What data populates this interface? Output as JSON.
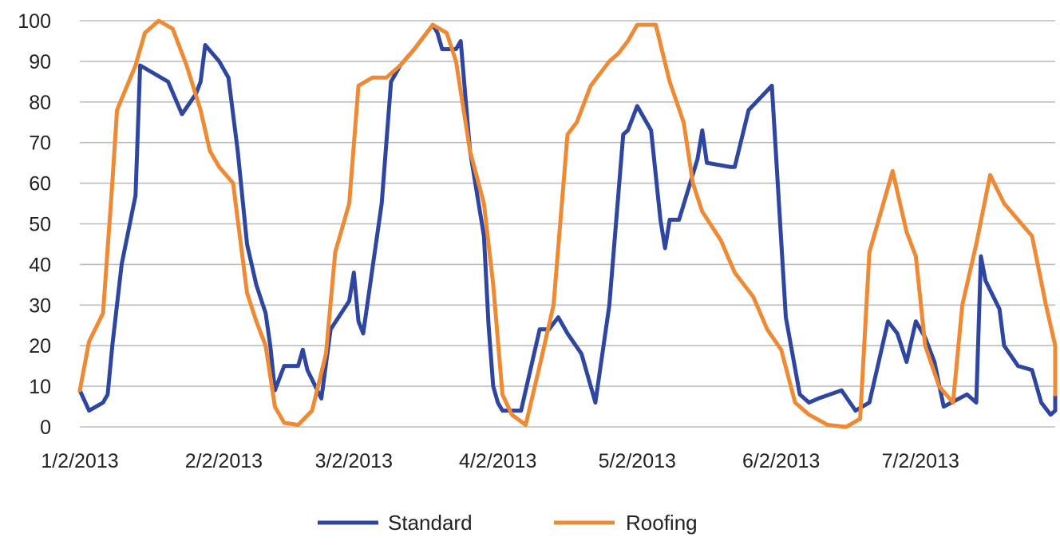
{
  "chart_data": {
    "type": "line",
    "title": "",
    "xlabel": "",
    "ylabel": "",
    "ylim": [
      0,
      100
    ],
    "yticks": [
      0,
      10,
      20,
      30,
      40,
      50,
      60,
      70,
      80,
      90,
      100
    ],
    "xlim": [
      "2013-01-02",
      "2013-07-31"
    ],
    "xticks": [
      {
        "date": "2013-01-02",
        "label": "1/2/2013"
      },
      {
        "date": "2013-02-02",
        "label": "2/2/2013"
      },
      {
        "date": "2013-03-02",
        "label": "3/2/2013"
      },
      {
        "date": "2013-04-02",
        "label": "4/2/2013"
      },
      {
        "date": "2013-05-02",
        "label": "5/2/2013"
      },
      {
        "date": "2013-06-02",
        "label": "6/2/2013"
      },
      {
        "date": "2013-07-02",
        "label": "7/2/2013"
      }
    ],
    "grid": true,
    "legend": "bottom",
    "series": [
      {
        "name": "Standard",
        "color": "#2e46a0",
        "points": [
          [
            "2013-01-02",
            9
          ],
          [
            "2013-01-04",
            4
          ],
          [
            "2013-01-07",
            6
          ],
          [
            "2013-01-08",
            8
          ],
          [
            "2013-01-09",
            20
          ],
          [
            "2013-01-11",
            40
          ],
          [
            "2013-01-14",
            57
          ],
          [
            "2013-01-15",
            89
          ],
          [
            "2013-01-21",
            85
          ],
          [
            "2013-01-24",
            77
          ],
          [
            "2013-01-27",
            82
          ],
          [
            "2013-01-28",
            85
          ],
          [
            "2013-01-29",
            94
          ],
          [
            "2013-02-01",
            90
          ],
          [
            "2013-02-03",
            86
          ],
          [
            "2013-02-05",
            68
          ],
          [
            "2013-02-07",
            45
          ],
          [
            "2013-02-09",
            35
          ],
          [
            "2013-02-11",
            28
          ],
          [
            "2013-02-12",
            20
          ],
          [
            "2013-02-13",
            9
          ],
          [
            "2013-02-15",
            15
          ],
          [
            "2013-02-18",
            15
          ],
          [
            "2013-02-19",
            19
          ],
          [
            "2013-02-20",
            14
          ],
          [
            "2013-02-23",
            7
          ],
          [
            "2013-02-25",
            24
          ],
          [
            "2013-03-01",
            31
          ],
          [
            "2013-03-02",
            38
          ],
          [
            "2013-03-03",
            26
          ],
          [
            "2013-03-04",
            23
          ],
          [
            "2013-03-08",
            55
          ],
          [
            "2013-03-10",
            85
          ],
          [
            "2013-03-12",
            89
          ],
          [
            "2013-03-15",
            93
          ],
          [
            "2013-03-19",
            99
          ],
          [
            "2013-03-20",
            97
          ],
          [
            "2013-03-21",
            93
          ],
          [
            "2013-03-24",
            93
          ],
          [
            "2013-03-25",
            95
          ],
          [
            "2013-03-27",
            68
          ],
          [
            "2013-03-30",
            47
          ],
          [
            "2013-03-31",
            25
          ],
          [
            "2013-04-01",
            10
          ],
          [
            "2013-04-02",
            6
          ],
          [
            "2013-04-03",
            4
          ],
          [
            "2013-04-07",
            4
          ],
          [
            "2013-04-11",
            24
          ],
          [
            "2013-04-13",
            24
          ],
          [
            "2013-04-15",
            27
          ],
          [
            "2013-04-17",
            23
          ],
          [
            "2013-04-20",
            18
          ],
          [
            "2013-04-22",
            10
          ],
          [
            "2013-04-23",
            6
          ],
          [
            "2013-04-26",
            30
          ],
          [
            "2013-04-29",
            72
          ],
          [
            "2013-04-30",
            73
          ],
          [
            "2013-05-02",
            79
          ],
          [
            "2013-05-05",
            73
          ],
          [
            "2013-05-07",
            51
          ],
          [
            "2013-05-08",
            44
          ],
          [
            "2013-05-09",
            51
          ],
          [
            "2013-05-11",
            51
          ],
          [
            "2013-05-15",
            66
          ],
          [
            "2013-05-16",
            73
          ],
          [
            "2013-05-17",
            65
          ],
          [
            "2013-05-22",
            64
          ],
          [
            "2013-05-23",
            64
          ],
          [
            "2013-05-26",
            78
          ],
          [
            "2013-05-31",
            84
          ],
          [
            "2013-06-03",
            27
          ],
          [
            "2013-06-06",
            8
          ],
          [
            "2013-06-08",
            6
          ],
          [
            "2013-06-10",
            7
          ],
          [
            "2013-06-15",
            9
          ],
          [
            "2013-06-18",
            4
          ],
          [
            "2013-06-21",
            6
          ],
          [
            "2013-06-25",
            26
          ],
          [
            "2013-06-27",
            23
          ],
          [
            "2013-06-29",
            16
          ],
          [
            "2013-07-01",
            26
          ],
          [
            "2013-07-03",
            22
          ],
          [
            "2013-07-05",
            16
          ],
          [
            "2013-07-07",
            5
          ],
          [
            "2013-07-12",
            8
          ],
          [
            "2013-07-14",
            6
          ],
          [
            "2013-07-15",
            42
          ],
          [
            "2013-07-16",
            36
          ],
          [
            "2013-07-19",
            29
          ],
          [
            "2013-07-20",
            20
          ],
          [
            "2013-07-23",
            15
          ],
          [
            "2013-07-26",
            14
          ],
          [
            "2013-07-28",
            6
          ],
          [
            "2013-07-30",
            3
          ],
          [
            "2013-08-01",
            4
          ],
          [
            "2013-08-03",
            7
          ],
          [
            "2013-08-04",
            10
          ]
        ]
      },
      {
        "name": "Roofing",
        "color": "#ee8a33",
        "points": [
          [
            "2013-01-02",
            9
          ],
          [
            "2013-01-04",
            21
          ],
          [
            "2013-01-07",
            28
          ],
          [
            "2013-01-09",
            60
          ],
          [
            "2013-01-10",
            78
          ],
          [
            "2013-01-14",
            89
          ],
          [
            "2013-01-16",
            97
          ],
          [
            "2013-01-19",
            100
          ],
          [
            "2013-01-22",
            98
          ],
          [
            "2013-01-25",
            89
          ],
          [
            "2013-01-28",
            78
          ],
          [
            "2013-01-30",
            68
          ],
          [
            "2013-02-01",
            64
          ],
          [
            "2013-02-04",
            60
          ],
          [
            "2013-02-07",
            33
          ],
          [
            "2013-02-09",
            26
          ],
          [
            "2013-02-11",
            20
          ],
          [
            "2013-02-13",
            5
          ],
          [
            "2013-02-15",
            1
          ],
          [
            "2013-02-18",
            0.5
          ],
          [
            "2013-02-21",
            4
          ],
          [
            "2013-02-24",
            18
          ],
          [
            "2013-02-26",
            43
          ],
          [
            "2013-03-01",
            55
          ],
          [
            "2013-03-03",
            84
          ],
          [
            "2013-03-06",
            86
          ],
          [
            "2013-03-09",
            86
          ],
          [
            "2013-03-12",
            89
          ],
          [
            "2013-03-15",
            93
          ],
          [
            "2013-03-19",
            99
          ],
          [
            "2013-03-22",
            97
          ],
          [
            "2013-03-24",
            90
          ],
          [
            "2013-03-27",
            68
          ],
          [
            "2013-03-30",
            55
          ],
          [
            "2013-04-01",
            35
          ],
          [
            "2013-04-03",
            8
          ],
          [
            "2013-04-05",
            3
          ],
          [
            "2013-04-08",
            0.5
          ],
          [
            "2013-04-11",
            15
          ],
          [
            "2013-04-14",
            30
          ],
          [
            "2013-04-17",
            72
          ],
          [
            "2013-04-19",
            75
          ],
          [
            "2013-04-22",
            84
          ],
          [
            "2013-04-26",
            90
          ],
          [
            "2013-04-28",
            92
          ],
          [
            "2013-04-30",
            95
          ],
          [
            "2013-05-02",
            99
          ],
          [
            "2013-05-06",
            99
          ],
          [
            "2013-05-09",
            85
          ],
          [
            "2013-05-12",
            75
          ],
          [
            "2013-05-14",
            60
          ],
          [
            "2013-05-16",
            53
          ],
          [
            "2013-05-20",
            46
          ],
          [
            "2013-05-23",
            38
          ],
          [
            "2013-05-27",
            32
          ],
          [
            "2013-05-30",
            24
          ],
          [
            "2013-06-02",
            19
          ],
          [
            "2013-06-05",
            6
          ],
          [
            "2013-06-08",
            3
          ],
          [
            "2013-06-12",
            0.5
          ],
          [
            "2013-06-16",
            0
          ],
          [
            "2013-06-19",
            2
          ],
          [
            "2013-06-21",
            43
          ],
          [
            "2013-06-24",
            55
          ],
          [
            "2013-06-26",
            63
          ],
          [
            "2013-06-29",
            48
          ],
          [
            "2013-07-01",
            42
          ],
          [
            "2013-07-03",
            20
          ],
          [
            "2013-07-06",
            10
          ],
          [
            "2013-07-09",
            6
          ],
          [
            "2013-07-11",
            30
          ],
          [
            "2013-07-14",
            45
          ],
          [
            "2013-07-17",
            62
          ],
          [
            "2013-07-20",
            55
          ],
          [
            "2013-07-23",
            51
          ],
          [
            "2013-07-26",
            47
          ],
          [
            "2013-07-29",
            30
          ],
          [
            "2013-08-01",
            20
          ],
          [
            "2013-08-03",
            8
          ]
        ]
      }
    ]
  }
}
